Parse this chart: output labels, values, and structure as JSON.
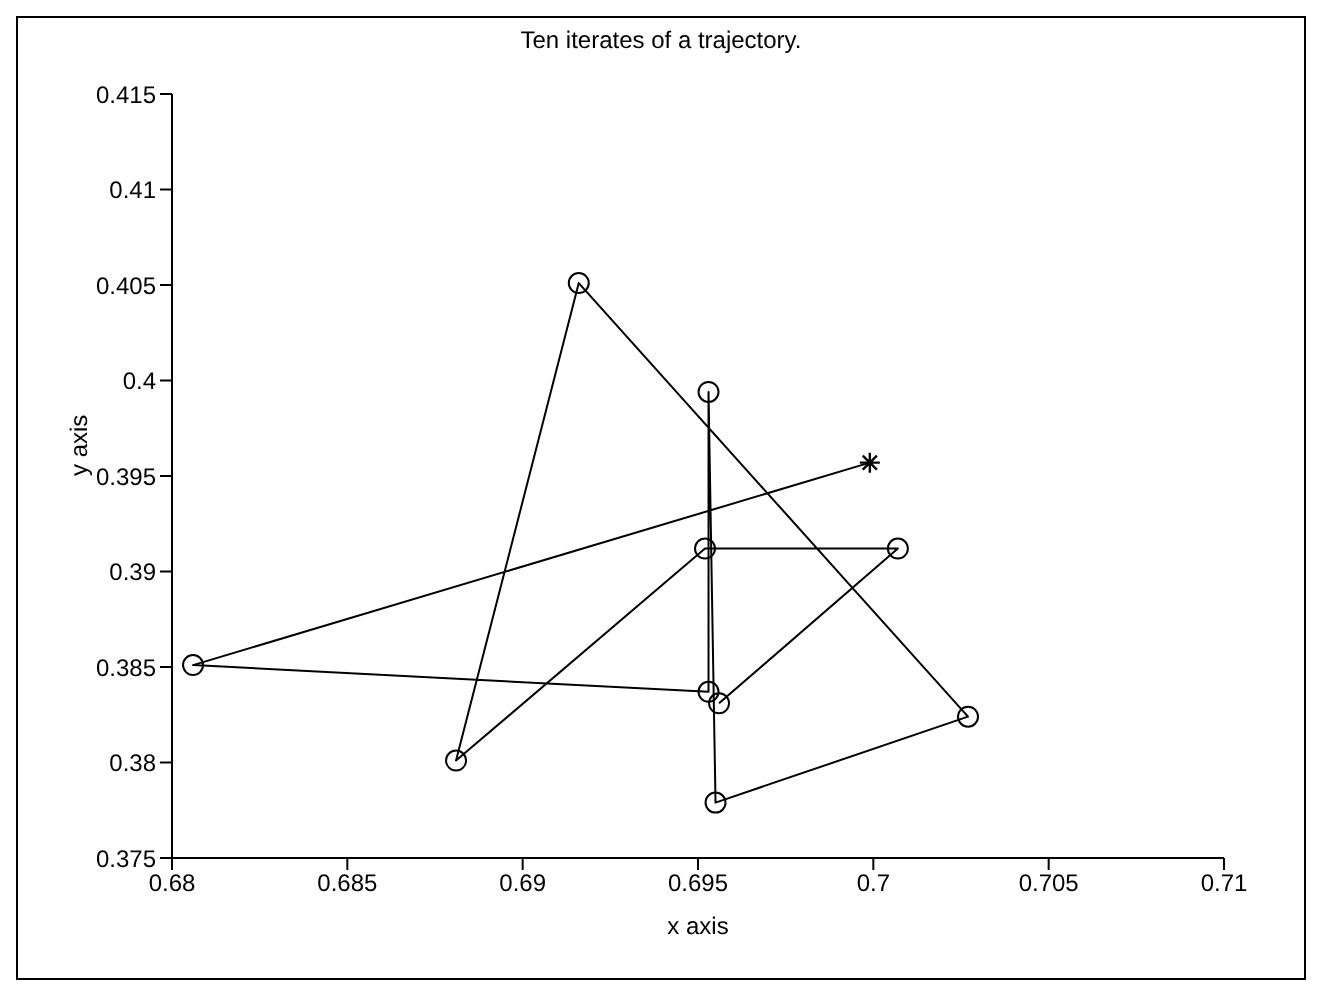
{
  "chart_data": {
    "type": "line",
    "title": "Ten iterates of a trajectory.",
    "xlabel": "x axis",
    "ylabel": "y axis",
    "xlim": [
      0.68,
      0.71
    ],
    "xticks": [
      0.68,
      0.685,
      0.69,
      0.695,
      0.7,
      0.705,
      0.71
    ],
    "ylim": [
      0.375,
      0.415
    ],
    "yticks": [
      0.375,
      0.38,
      0.385,
      0.39,
      0.395,
      0.4,
      0.405,
      0.41,
      0.415
    ],
    "grid": false,
    "series": [
      {
        "marker": "none",
        "color": "#000000",
        "x": [
          0.6999,
          0.6806,
          0.6953,
          0.6953,
          0.6955,
          0.7027,
          0.6916,
          0.6881,
          0.6952,
          0.7007,
          0.6956
        ],
        "values": [
          0.3957,
          0.3851,
          0.3837,
          0.3994,
          0.3779,
          0.3824,
          0.4051,
          0.3801,
          0.3912,
          0.3912,
          0.3831
        ]
      },
      {
        "type": "scatter",
        "marker": "circle",
        "color": "#000000",
        "x": [
          0.6806,
          0.6953,
          0.6953,
          0.6955,
          0.7027,
          0.6916,
          0.6881,
          0.6952,
          0.7007,
          0.6956
        ],
        "values": [
          0.3851,
          0.3837,
          0.3994,
          0.3779,
          0.3824,
          0.4051,
          0.3801,
          0.3912,
          0.3912,
          0.3831
        ]
      },
      {
        "type": "scatter",
        "marker": "cross",
        "color": "#000000",
        "x": [
          0.6999
        ],
        "values": [
          0.3957
        ]
      }
    ]
  }
}
